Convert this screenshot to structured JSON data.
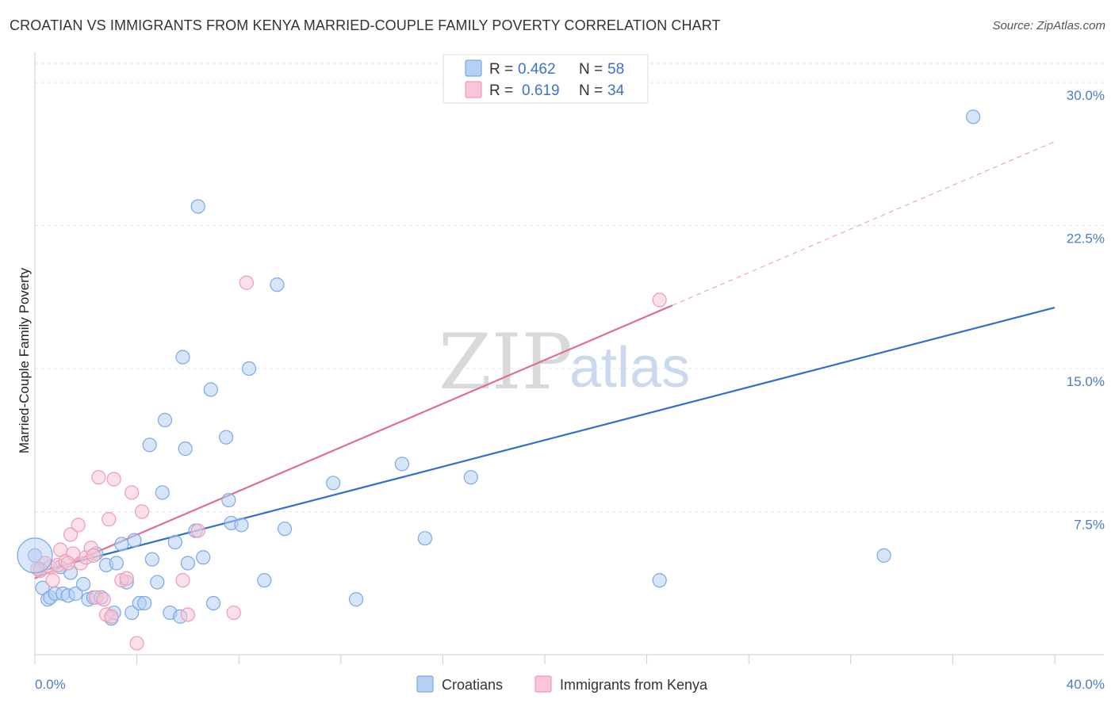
{
  "chart_data": {
    "type": "scatter",
    "title": "CROATIAN VS IMMIGRANTS FROM KENYA MARRIED-COUPLE FAMILY POVERTY CORRELATION CHART",
    "source": "Source: ZipAtlas.com",
    "xlabel": "",
    "ylabel": "Married-Couple Family Poverty",
    "xlim": [
      0,
      40
    ],
    "ylim": [
      0,
      31
    ],
    "x_tick_labels": [
      "0.0%",
      "40.0%"
    ],
    "y_ticks": [
      7.5,
      15.0,
      22.5,
      30.0
    ],
    "y_tick_labels": [
      "7.5%",
      "15.0%",
      "22.5%",
      "30.0%"
    ],
    "watermark": {
      "zip": "ZIP",
      "atlas": "atlas"
    },
    "legend": {
      "entries": [
        {
          "r_label": "R =",
          "r_value": "0.462",
          "n_label": "N =",
          "n_value": "58"
        },
        {
          "r_label": "R =",
          "r_value": "0.619",
          "n_label": "N =",
          "n_value": "34"
        }
      ]
    },
    "series": [
      {
        "name": "Croatians",
        "color": "#7aa9e6",
        "fill": "#b5d0f2",
        "line_color": "#2f6fcf",
        "trend": {
          "x0": 0,
          "y0": 4.3,
          "x1": 40,
          "y1": 18.2,
          "solid_to": 40
        },
        "points": [
          [
            0.0,
            5.2
          ],
          [
            0.3,
            3.5
          ],
          [
            0.5,
            2.9
          ],
          [
            0.6,
            3.0
          ],
          [
            0.8,
            3.2
          ],
          [
            1.1,
            3.2
          ],
          [
            1.3,
            3.1
          ],
          [
            1.4,
            4.3
          ],
          [
            1.6,
            3.2
          ],
          [
            1.9,
            3.7
          ],
          [
            2.1,
            2.9
          ],
          [
            2.3,
            3.0
          ],
          [
            2.4,
            5.3
          ],
          [
            2.6,
            3.0
          ],
          [
            2.8,
            4.7
          ],
          [
            3.0,
            1.9
          ],
          [
            3.1,
            2.2
          ],
          [
            3.2,
            4.8
          ],
          [
            3.4,
            5.8
          ],
          [
            3.6,
            3.8
          ],
          [
            3.8,
            2.2
          ],
          [
            3.9,
            6.0
          ],
          [
            4.1,
            2.7
          ],
          [
            4.3,
            2.7
          ],
          [
            4.5,
            11.0
          ],
          [
            4.6,
            5.0
          ],
          [
            4.8,
            3.8
          ],
          [
            5.0,
            8.5
          ],
          [
            5.1,
            12.3
          ],
          [
            5.3,
            2.2
          ],
          [
            5.5,
            5.9
          ],
          [
            5.7,
            2.0
          ],
          [
            5.8,
            15.6
          ],
          [
            5.9,
            10.8
          ],
          [
            6.0,
            4.8
          ],
          [
            6.3,
            6.5
          ],
          [
            6.4,
            23.5
          ],
          [
            6.6,
            5.1
          ],
          [
            6.9,
            13.9
          ],
          [
            7.0,
            2.7
          ],
          [
            7.5,
            11.4
          ],
          [
            7.6,
            8.1
          ],
          [
            7.7,
            6.9
          ],
          [
            8.1,
            6.8
          ],
          [
            8.4,
            15.0
          ],
          [
            9.0,
            3.9
          ],
          [
            9.5,
            19.4
          ],
          [
            9.8,
            6.6
          ],
          [
            11.7,
            9.0
          ],
          [
            12.6,
            2.9
          ],
          [
            14.4,
            10.0
          ],
          [
            15.3,
            6.1
          ],
          [
            17.1,
            9.3
          ],
          [
            24.5,
            3.9
          ],
          [
            33.3,
            5.2
          ],
          [
            36.8,
            28.2
          ],
          [
            0.2,
            4.5
          ],
          [
            1.0,
            4.6
          ]
        ]
      },
      {
        "name": "Immigrants from Kenya",
        "color": "#ef9ab5",
        "fill": "#f8c6d6",
        "line_color": "#e06d97",
        "trend": {
          "x0": 0,
          "y0": 4.0,
          "x1": 40,
          "y1": 26.9,
          "solid_to": 25.0
        },
        "points": [
          [
            0.2,
            4.4
          ],
          [
            0.4,
            4.8
          ],
          [
            0.6,
            4.6
          ],
          [
            0.7,
            3.9
          ],
          [
            0.9,
            4.7
          ],
          [
            1.0,
            5.5
          ],
          [
            1.2,
            4.9
          ],
          [
            1.4,
            6.3
          ],
          [
            1.5,
            5.3
          ],
          [
            1.7,
            6.8
          ],
          [
            1.8,
            4.8
          ],
          [
            2.0,
            5.1
          ],
          [
            2.2,
            5.6
          ],
          [
            2.4,
            3.0
          ],
          [
            2.5,
            9.3
          ],
          [
            2.7,
            2.9
          ],
          [
            2.8,
            2.1
          ],
          [
            2.9,
            7.1
          ],
          [
            3.0,
            2.0
          ],
          [
            3.1,
            9.2
          ],
          [
            3.4,
            3.9
          ],
          [
            3.8,
            8.5
          ],
          [
            4.0,
            0.6
          ],
          [
            4.2,
            7.5
          ],
          [
            5.8,
            3.9
          ],
          [
            6.0,
            2.1
          ],
          [
            6.4,
            6.5
          ],
          [
            7.8,
            2.2
          ],
          [
            8.3,
            19.5
          ],
          [
            24.5,
            18.6
          ],
          [
            0.1,
            4.5
          ],
          [
            1.3,
            4.8
          ],
          [
            2.3,
            5.2
          ],
          [
            3.6,
            4.0
          ]
        ]
      }
    ]
  }
}
